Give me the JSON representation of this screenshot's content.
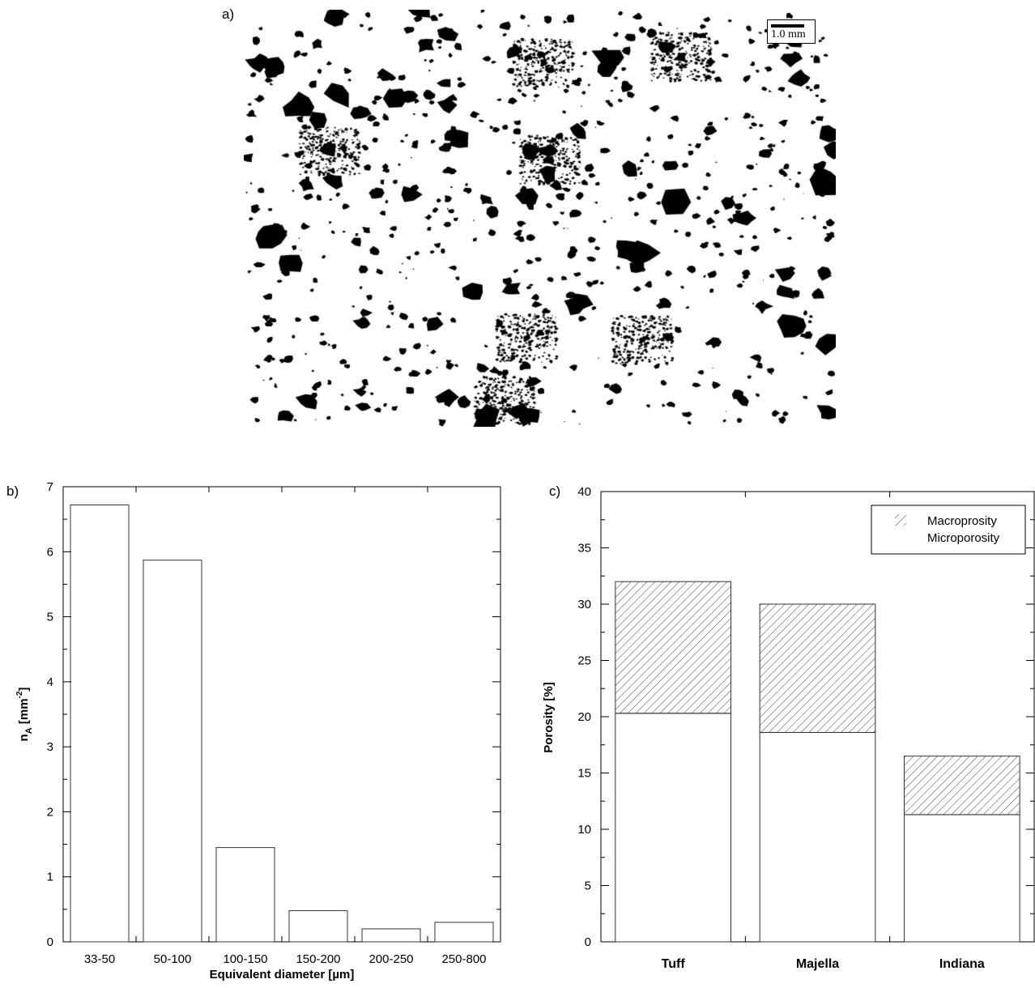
{
  "panel_a": {
    "letter": "a)",
    "scale_label": "1.0 mm"
  },
  "chart_data": [
    {
      "type": "bar",
      "panel": "b)",
      "categories": [
        "33-50",
        "50-100",
        "100-150",
        "150-200",
        "200-250",
        "250-800"
      ],
      "values": [
        6.72,
        5.87,
        1.45,
        0.48,
        0.2,
        0.3
      ],
      "xlabel": "Equivalent diameter [µm]",
      "ylabel_main": "n",
      "ylabel_sub": "A",
      "ylabel_unit": "[mm",
      "ylabel_sup": "-2",
      "ylabel_end": "]",
      "ylim": [
        0,
        7
      ],
      "yticks": [
        "0",
        "1",
        "2",
        "3",
        "4",
        "5",
        "6",
        "7"
      ],
      "grid": false
    },
    {
      "type": "bar",
      "stacked": true,
      "panel": "c)",
      "categories": [
        "Tuff",
        "Majella",
        "Indiana"
      ],
      "series": [
        {
          "name": "Microporosity",
          "values": [
            20.3,
            18.6,
            11.3
          ],
          "fill": "#ffffff"
        },
        {
          "name": "Macroprosity",
          "values": [
            11.7,
            11.4,
            5.2
          ],
          "fill": "hatch"
        }
      ],
      "totals": [
        32,
        30,
        16.5
      ],
      "ylabel": "Porosity [%]",
      "ylim": [
        0,
        40
      ],
      "yticks": [
        "0",
        "5",
        "10",
        "15",
        "20",
        "25",
        "30",
        "35",
        "40"
      ],
      "legend": {
        "position": "top-right",
        "entries": [
          "Macroprosity",
          "Microporosity"
        ]
      },
      "grid": false
    }
  ],
  "colors": {
    "ink": "#000000",
    "bar_edge": "#333333",
    "hatch": "#444444",
    "background": "#ffffff"
  }
}
